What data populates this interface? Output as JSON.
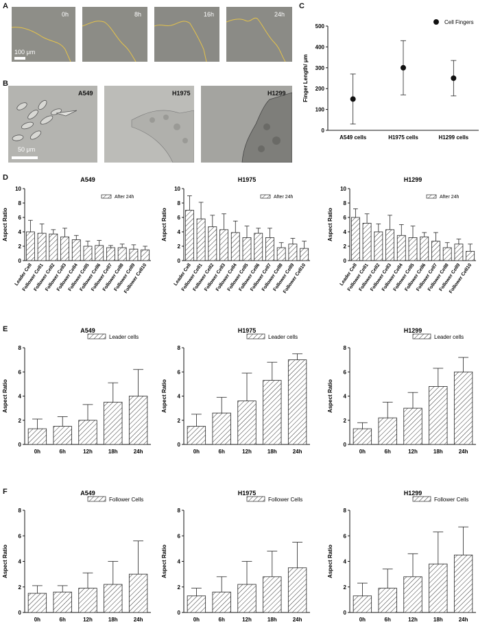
{
  "panel_labels": {
    "a": "A",
    "b": "B",
    "c": "C",
    "d": "D",
    "e": "E",
    "f": "F"
  },
  "panel_a": {
    "timepoints": [
      "0h",
      "8h",
      "16h",
      "24h"
    ],
    "scale_bar": "100 μm"
  },
  "panel_b": {
    "cell_lines": [
      "A549",
      "H1975",
      "H1299"
    ],
    "scale_bar": "50 μm"
  },
  "colors": {
    "bar_hatch": "#333333",
    "edge_line": "#e6c44a",
    "micro_a": "#8c8c86",
    "micro_b": "#b8b8b4"
  },
  "chart_data": [
    {
      "id": "C",
      "type": "scatter",
      "title": "",
      "ylabel": "Finger Length/ μm",
      "legend": "Cell Fingers",
      "categories": [
        "A549 cells",
        "H1975 cells",
        "H1299 cells"
      ],
      "values": [
        150,
        300,
        250
      ],
      "err_low": [
        30,
        170,
        165
      ],
      "err_high": [
        270,
        430,
        335
      ],
      "ylim": [
        0,
        500
      ],
      "yticks": [
        0,
        100,
        200,
        300,
        400,
        500
      ]
    },
    {
      "id": "D1",
      "type": "bar",
      "title": "A549",
      "ylabel": "Aspect Ratio",
      "legend": "After 24h",
      "categories": [
        "Leader Cell",
        "Follower Cell1",
        "Follower Cell2",
        "Follower Cell3",
        "Follower Cell4",
        "Follower Cell5",
        "Follower Cell6",
        "Follower Cell7",
        "Follower Cell8",
        "Follower Cell9",
        "Follower Cell10"
      ],
      "values": [
        4.0,
        3.8,
        3.7,
        3.3,
        2.9,
        2.0,
        2.1,
        1.8,
        1.8,
        1.6,
        1.5
      ],
      "errors": [
        1.6,
        1.3,
        0.6,
        1.2,
        0.6,
        0.7,
        0.7,
        0.3,
        0.5,
        0.6,
        0.5
      ],
      "ylim": [
        0,
        10
      ],
      "yticks": [
        0,
        2,
        4,
        6,
        8,
        10
      ]
    },
    {
      "id": "D2",
      "type": "bar",
      "title": "H1975",
      "ylabel": "Aspect Ratio",
      "legend": "After 24h",
      "categories": [
        "Leader Cell",
        "Follower Cell1",
        "Follower Cell2",
        "Follower Cell3",
        "Follower Cell4",
        "Follower Cell5",
        "Follower Cell6",
        "Follower Cell7",
        "Follower Cell8",
        "Follower Cell9",
        "Follower Cell10"
      ],
      "values": [
        7.0,
        5.8,
        4.7,
        4.3,
        3.9,
        3.2,
        3.8,
        3.2,
        1.8,
        2.3,
        1.7
      ],
      "errors": [
        2.0,
        2.3,
        1.6,
        2.2,
        1.6,
        1.6,
        0.7,
        1.3,
        0.7,
        0.8,
        1.0
      ],
      "ylim": [
        0,
        10
      ],
      "yticks": [
        0,
        2,
        4,
        6,
        8,
        10
      ]
    },
    {
      "id": "D3",
      "type": "bar",
      "title": "H1299",
      "ylabel": "Aspect Ratio",
      "legend": "After 24h",
      "categories": [
        "Leader Cell",
        "Follower Cell1",
        "Follower Cell2",
        "Follower Cell3",
        "Follower Cell4",
        "Follower Cell5",
        "Follower Cell6",
        "Follower Cell7",
        "Follower Cell8",
        "Follower Cell9",
        "Follower Cell10"
      ],
      "values": [
        6.0,
        5.2,
        4.0,
        4.3,
        3.5,
        3.2,
        3.3,
        2.7,
        1.8,
        2.3,
        1.3
      ],
      "errors": [
        1.2,
        1.3,
        1.1,
        2.0,
        1.5,
        1.6,
        0.6,
        1.2,
        0.7,
        0.7,
        1.0
      ],
      "ylim": [
        0,
        10
      ],
      "yticks": [
        0,
        2,
        4,
        6,
        8,
        10
      ]
    },
    {
      "id": "E1",
      "type": "bar",
      "title": "A549",
      "ylabel": "Aspect Ratio",
      "legend": "Leader cells",
      "categories": [
        "0h",
        "6h",
        "12h",
        "18h",
        "24h"
      ],
      "values": [
        1.3,
        1.5,
        2.0,
        3.5,
        4.0
      ],
      "errors": [
        0.8,
        0.8,
        1.3,
        1.6,
        2.2
      ],
      "ylim": [
        0,
        8
      ],
      "yticks": [
        0,
        2,
        4,
        6,
        8
      ]
    },
    {
      "id": "E2",
      "type": "bar",
      "title": "H1975",
      "ylabel": "Aspect Ratio",
      "legend": "Leader cells",
      "categories": [
        "0h",
        "6h",
        "12h",
        "18h",
        "24h"
      ],
      "values": [
        1.5,
        2.6,
        3.6,
        5.3,
        7.0
      ],
      "errors": [
        1.0,
        1.3,
        2.3,
        1.5,
        0.5
      ],
      "ylim": [
        0,
        8
      ],
      "yticks": [
        0,
        2,
        4,
        6,
        8
      ]
    },
    {
      "id": "E3",
      "type": "bar",
      "title": "H1299",
      "ylabel": "Aspect Ratio",
      "legend": "Leader cells",
      "categories": [
        "0h",
        "6h",
        "12h",
        "18h",
        "24h"
      ],
      "values": [
        1.3,
        2.2,
        3.0,
        4.8,
        6.0
      ],
      "errors": [
        0.5,
        1.3,
        1.3,
        1.5,
        1.2
      ],
      "ylim": [
        0,
        8
      ],
      "yticks": [
        0,
        2,
        4,
        6,
        8
      ]
    },
    {
      "id": "F1",
      "type": "bar",
      "title": "A549",
      "ylabel": "Aspect Ratio",
      "legend": "Follower Cells",
      "categories": [
        "0h",
        "6h",
        "12h",
        "18h",
        "24h"
      ],
      "values": [
        1.5,
        1.6,
        1.9,
        2.2,
        3.0
      ],
      "errors": [
        0.6,
        0.5,
        1.2,
        1.8,
        2.6
      ],
      "ylim": [
        0,
        8
      ],
      "yticks": [
        0,
        2,
        4,
        6,
        8
      ]
    },
    {
      "id": "F2",
      "type": "bar",
      "title": "H1975",
      "ylabel": "Aspect Ratio",
      "legend": "Follower Cells",
      "categories": [
        "0h",
        "6h",
        "12h",
        "18h",
        "24h"
      ],
      "values": [
        1.3,
        1.6,
        2.2,
        2.8,
        3.5
      ],
      "errors": [
        0.6,
        1.2,
        1.8,
        2.0,
        2.0
      ],
      "ylim": [
        0,
        8
      ],
      "yticks": [
        0,
        2,
        4,
        6,
        8
      ]
    },
    {
      "id": "F3",
      "type": "bar",
      "title": "H1299",
      "ylabel": "Aspect Ratio",
      "legend": "Follower Cells",
      "categories": [
        "0h",
        "6h",
        "12h",
        "18h",
        "24h"
      ],
      "values": [
        1.3,
        1.9,
        2.8,
        3.8,
        4.5
      ],
      "errors": [
        1.0,
        1.5,
        1.8,
        2.5,
        2.2
      ],
      "ylim": [
        0,
        8
      ],
      "yticks": [
        0,
        2,
        4,
        6,
        8
      ]
    }
  ]
}
